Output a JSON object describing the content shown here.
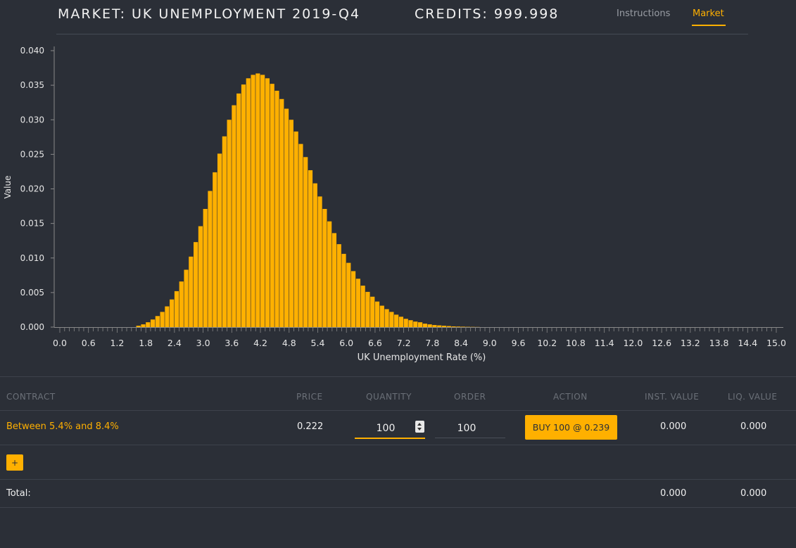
{
  "header": {
    "title": "MARKET: UK UNEMPLOYMENT 2019-Q4",
    "credits": "CREDITS: 999.998",
    "nav": {
      "instructions": "Instructions",
      "market": "Market"
    }
  },
  "colors": {
    "accent": "#ffb000",
    "background": "#2b2f37"
  },
  "chart_data": {
    "type": "bar",
    "xlabel": "UK Unemployment Rate (%)",
    "ylabel": "Value",
    "xlim": [
      0,
      15
    ],
    "ylim": [
      0,
      0.04
    ],
    "bin_width": 0.1,
    "x_ticks": [
      "0.0",
      "0.6",
      "1.2",
      "1.8",
      "2.4",
      "3.0",
      "3.6",
      "4.2",
      "4.8",
      "5.4",
      "6.0",
      "6.6",
      "7.2",
      "7.8",
      "8.4",
      "9.0",
      "9.6",
      "10.2",
      "10.8",
      "11.4",
      "12.0",
      "12.6",
      "13.2",
      "13.8",
      "14.4",
      "15.0"
    ],
    "y_ticks": [
      "0.000",
      "0.005",
      "0.010",
      "0.015",
      "0.020",
      "0.025",
      "0.030",
      "0.035",
      "0.040"
    ],
    "bars": [
      {
        "x": 1.6,
        "value": 0.0002
      },
      {
        "x": 1.7,
        "value": 0.0004
      },
      {
        "x": 1.8,
        "value": 0.0007
      },
      {
        "x": 1.9,
        "value": 0.0011
      },
      {
        "x": 2.0,
        "value": 0.0016
      },
      {
        "x": 2.1,
        "value": 0.0022
      },
      {
        "x": 2.2,
        "value": 0.003
      },
      {
        "x": 2.3,
        "value": 0.004
      },
      {
        "x": 2.4,
        "value": 0.0052
      },
      {
        "x": 2.5,
        "value": 0.0066
      },
      {
        "x": 2.6,
        "value": 0.0083
      },
      {
        "x": 2.7,
        "value": 0.0102
      },
      {
        "x": 2.8,
        "value": 0.0123
      },
      {
        "x": 2.9,
        "value": 0.0146
      },
      {
        "x": 3.0,
        "value": 0.0171
      },
      {
        "x": 3.1,
        "value": 0.0197
      },
      {
        "x": 3.2,
        "value": 0.0224
      },
      {
        "x": 3.3,
        "value": 0.0251
      },
      {
        "x": 3.4,
        "value": 0.0276
      },
      {
        "x": 3.5,
        "value": 0.03
      },
      {
        "x": 3.6,
        "value": 0.0321
      },
      {
        "x": 3.7,
        "value": 0.0338
      },
      {
        "x": 3.8,
        "value": 0.0351
      },
      {
        "x": 3.9,
        "value": 0.036
      },
      {
        "x": 4.0,
        "value": 0.0365
      },
      {
        "x": 4.1,
        "value": 0.0367
      },
      {
        "x": 4.2,
        "value": 0.0365
      },
      {
        "x": 4.3,
        "value": 0.036
      },
      {
        "x": 4.4,
        "value": 0.0352
      },
      {
        "x": 4.5,
        "value": 0.0342
      },
      {
        "x": 4.6,
        "value": 0.033
      },
      {
        "x": 4.7,
        "value": 0.0316
      },
      {
        "x": 4.8,
        "value": 0.03
      },
      {
        "x": 4.9,
        "value": 0.0283
      },
      {
        "x": 5.0,
        "value": 0.0265
      },
      {
        "x": 5.1,
        "value": 0.0246
      },
      {
        "x": 5.2,
        "value": 0.0227
      },
      {
        "x": 5.3,
        "value": 0.0208
      },
      {
        "x": 5.4,
        "value": 0.0189
      },
      {
        "x": 5.5,
        "value": 0.0171
      },
      {
        "x": 5.6,
        "value": 0.0153
      },
      {
        "x": 5.7,
        "value": 0.0136
      },
      {
        "x": 5.8,
        "value": 0.012
      },
      {
        "x": 5.9,
        "value": 0.0106
      },
      {
        "x": 6.0,
        "value": 0.0093
      },
      {
        "x": 6.1,
        "value": 0.0081
      },
      {
        "x": 6.2,
        "value": 0.007
      },
      {
        "x": 6.3,
        "value": 0.006
      },
      {
        "x": 6.4,
        "value": 0.0051
      },
      {
        "x": 6.5,
        "value": 0.0044
      },
      {
        "x": 6.6,
        "value": 0.0037
      },
      {
        "x": 6.7,
        "value": 0.0031
      },
      {
        "x": 6.8,
        "value": 0.0026
      },
      {
        "x": 6.9,
        "value": 0.0022
      },
      {
        "x": 7.0,
        "value": 0.0018
      },
      {
        "x": 7.1,
        "value": 0.0015
      },
      {
        "x": 7.2,
        "value": 0.0012
      },
      {
        "x": 7.3,
        "value": 0.001
      },
      {
        "x": 7.4,
        "value": 0.0008
      },
      {
        "x": 7.5,
        "value": 0.0007
      },
      {
        "x": 7.6,
        "value": 0.0005
      },
      {
        "x": 7.7,
        "value": 0.0004
      },
      {
        "x": 7.8,
        "value": 0.0003
      },
      {
        "x": 7.9,
        "value": 0.00025
      },
      {
        "x": 8.0,
        "value": 0.0002
      },
      {
        "x": 8.1,
        "value": 0.00015
      },
      {
        "x": 8.2,
        "value": 0.0001
      },
      {
        "x": 8.3,
        "value": 8e-05
      },
      {
        "x": 8.4,
        "value": 6e-05
      },
      {
        "x": 8.5,
        "value": 4e-05
      },
      {
        "x": 8.6,
        "value": 3e-05
      },
      {
        "x": 8.7,
        "value": 2e-05
      }
    ]
  },
  "table": {
    "headers": {
      "contract": "CONTRACT",
      "price": "PRICE",
      "quantity": "QUANTITY",
      "order": "ORDER",
      "action": "ACTION",
      "inst_value": "INST. VALUE",
      "liq_value": "LIQ. VALUE"
    },
    "rows": [
      {
        "contract": "Between 5.4% and 8.4%",
        "price": "0.222",
        "quantity": "100",
        "order": "100",
        "action_label": "BUY 100 @ 0.239",
        "inst_value": "0.000",
        "liq_value": "0.000"
      }
    ],
    "add_label": "+",
    "total": {
      "label": "Total:",
      "inst_value": "0.000",
      "liq_value": "0.000"
    }
  }
}
